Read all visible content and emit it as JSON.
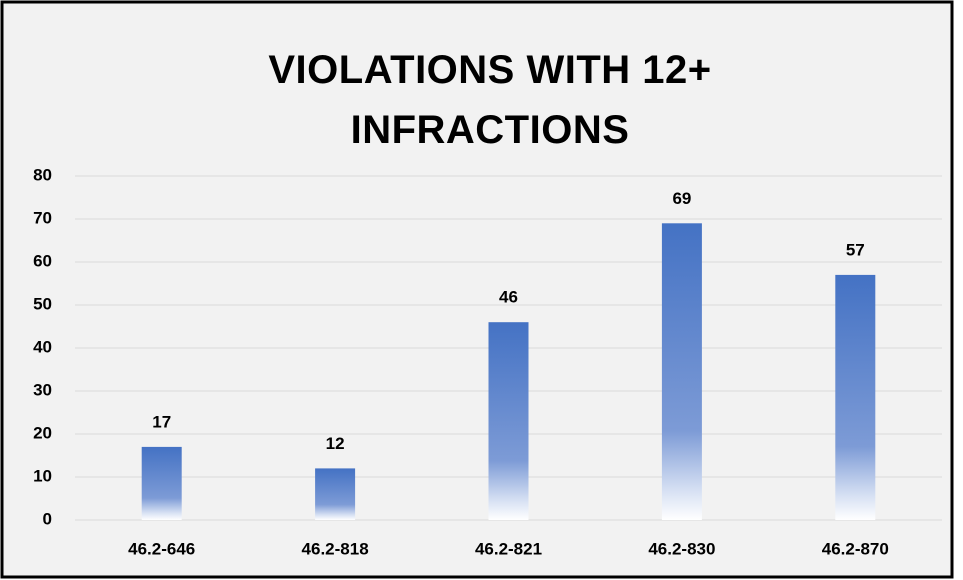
{
  "chart_data": {
    "type": "bar",
    "title": "VIOLATIONS WITH 12+ INFRACTIONS",
    "categories": [
      "46.2-646",
      "46.2-818",
      "46.2-821",
      "46.2-830",
      "46.2-870"
    ],
    "values": [
      17,
      12,
      46,
      69,
      57
    ],
    "color": "#4472c4",
    "ylim": [
      0,
      80
    ],
    "yticks": [
      0,
      10,
      20,
      30,
      40,
      50,
      60,
      70,
      80
    ],
    "grid": true
  }
}
